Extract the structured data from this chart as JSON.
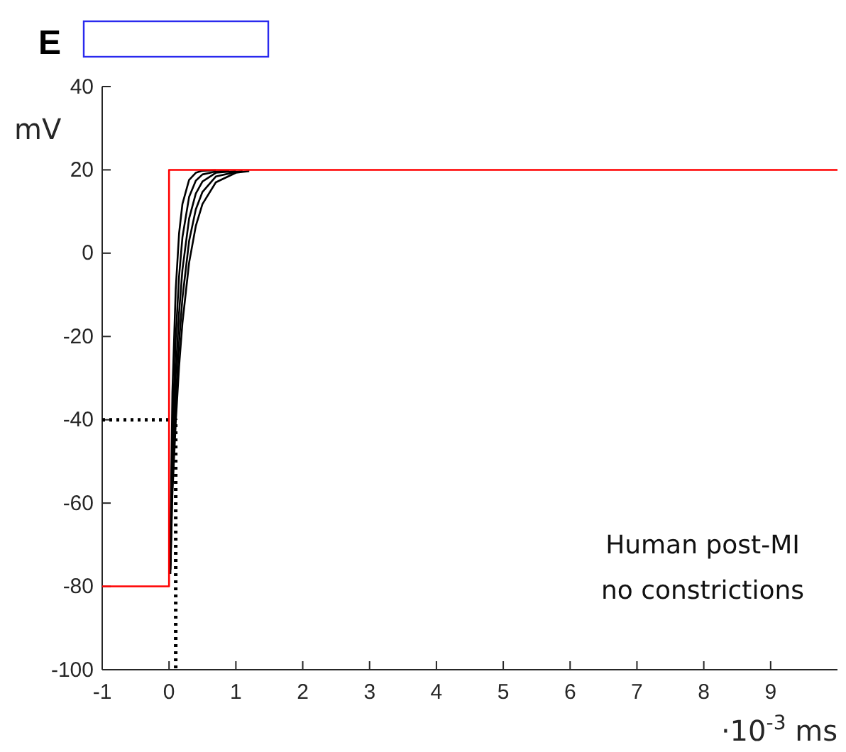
{
  "chart_data": {
    "type": "line",
    "title": "E",
    "xlabel": "·10$^{-3}$ ms",
    "ylabel": "mV",
    "xlim": [
      -1,
      10
    ],
    "xticks": [
      -1,
      0,
      1,
      2,
      3,
      4,
      5,
      6,
      7,
      8,
      9
    ],
    "ylim": [
      -100,
      40
    ],
    "yticks": [
      -100,
      -80,
      -60,
      -40,
      -20,
      0,
      20,
      40
    ],
    "grid": false,
    "marker": "none",
    "annotations": [
      "Human post-MI",
      "no constrictions"
    ],
    "series": [
      {
        "color": "#000000",
        "x": [
          0.02,
          0.05,
          0.1,
          0.15,
          0.2,
          0.3,
          0.4,
          0.5,
          0.7
        ],
        "values": [
          -70,
          -33.5,
          -8.7,
          4.7,
          11.8,
          17.6,
          19.3,
          19.8,
          19.9
        ]
      },
      {
        "color": "#000000",
        "x": [
          0.02,
          0.05,
          0.1,
          0.15,
          0.2,
          0.3,
          0.4,
          0.5,
          0.7,
          0.9
        ],
        "values": [
          -73,
          -43.5,
          -20.3,
          -5.6,
          3.8,
          13.5,
          17.4,
          18.9,
          19.6,
          19.8
        ]
      },
      {
        "color": "#000000",
        "x": [
          0.02,
          0.05,
          0.1,
          0.15,
          0.2,
          0.3,
          0.4,
          0.5,
          0.7,
          1
        ],
        "values": [
          -75,
          -50,
          -29,
          -14.3,
          -4,
          8.3,
          14.3,
          17.2,
          19.3,
          19.7
        ]
      },
      {
        "color": "#000000",
        "x": [
          0.02,
          0.05,
          0.1,
          0.15,
          0.2,
          0.3,
          0.4,
          0.5,
          0.7,
          1,
          1.1
        ],
        "values": [
          -76,
          -54.5,
          -35.5,
          -21.4,
          -10.8,
          2.9,
          10.5,
          14.7,
          18.4,
          19.5,
          19.7
        ]
      },
      {
        "color": "#000000",
        "x": [
          0.02,
          0.05,
          0.1,
          0.15,
          0.2,
          0.3,
          0.4,
          0.5,
          0.7,
          1,
          1.2
        ],
        "values": [
          -77,
          -57.9,
          -40.7,
          -27.2,
          -16.8,
          -2.3,
          6.5,
          11.8,
          17,
          19.3,
          19.7
        ]
      },
      {
        "color": "#000000",
        "line_style": "dotted",
        "x": [
          -1,
          0.1,
          0.1
        ],
        "values": [
          -40,
          -40,
          -100
        ]
      },
      {
        "color": "#ff0000",
        "x": [
          -1,
          0,
          0,
          10
        ],
        "values": [
          -80,
          -80,
          20,
          20
        ]
      }
    ]
  }
}
